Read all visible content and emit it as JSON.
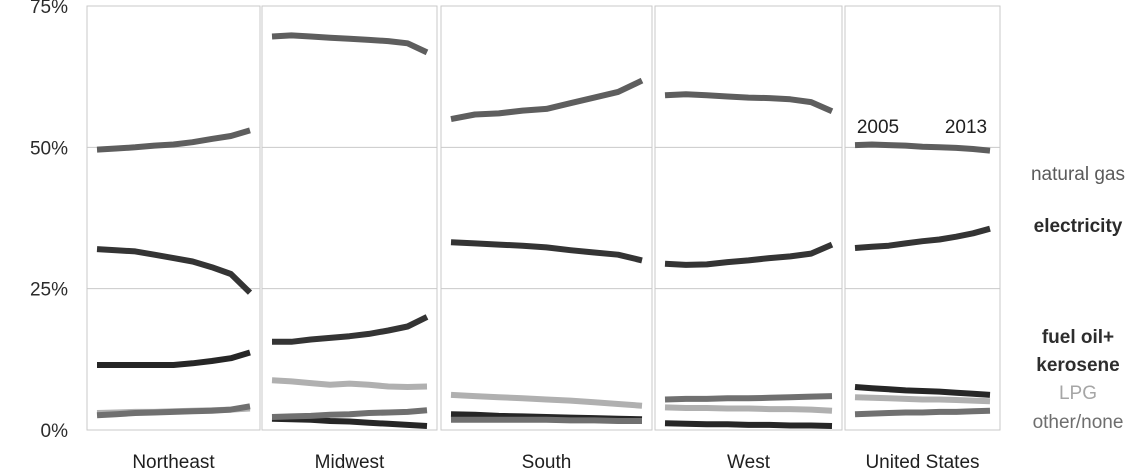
{
  "chart_data": {
    "type": "line",
    "title": "",
    "xlabel": "",
    "ylabel": "",
    "ylim": [
      0,
      75
    ],
    "y_ticks": [
      "0%",
      "25%",
      "50%",
      "75%"
    ],
    "y_tick_values": [
      0,
      25,
      50,
      75
    ],
    "grid": true,
    "legend_position": "right",
    "years": [
      2005,
      2006,
      2007,
      2008,
      2009,
      2010,
      2011,
      2012,
      2013
    ],
    "annotations": {
      "start_year": "2005",
      "end_year": "2013"
    },
    "panels": [
      {
        "name": "Northeast",
        "series": [
          {
            "name": "natural gas",
            "values": [
              49.6,
              49.8,
              50.0,
              50.3,
              50.5,
              50.9,
              51.5,
              52.0,
              53.0
            ]
          },
          {
            "name": "electricity",
            "values": [
              32.0,
              31.8,
              31.6,
              31.0,
              30.4,
              29.8,
              28.8,
              27.6,
              24.3
            ]
          },
          {
            "name": "fuel oil+ kerosene",
            "values": [
              11.5,
              11.5,
              11.5,
              11.5,
              11.5,
              11.8,
              12.2,
              12.7,
              13.7
            ]
          },
          {
            "name": "LPG",
            "values": [
              3.0,
              3.1,
              3.2,
              3.2,
              3.3,
              3.4,
              3.5,
              3.6,
              3.8
            ]
          },
          {
            "name": "other/none",
            "values": [
              2.6,
              2.8,
              3.0,
              3.1,
              3.2,
              3.3,
              3.4,
              3.6,
              4.2
            ]
          }
        ]
      },
      {
        "name": "Midwest",
        "series": [
          {
            "name": "natural gas",
            "values": [
              69.6,
              69.8,
              69.6,
              69.4,
              69.2,
              69.0,
              68.8,
              68.4,
              66.8
            ]
          },
          {
            "name": "electricity",
            "values": [
              15.6,
              15.6,
              16.0,
              16.3,
              16.6,
              17.0,
              17.6,
              18.3,
              20.0
            ]
          },
          {
            "name": "fuel oil+ kerosene",
            "values": [
              2.0,
              1.9,
              1.8,
              1.6,
              1.5,
              1.3,
              1.1,
              0.9,
              0.7
            ]
          },
          {
            "name": "LPG",
            "values": [
              8.8,
              8.6,
              8.3,
              8.0,
              8.2,
              8.0,
              7.7,
              7.6,
              7.7
            ]
          },
          {
            "name": "other/none",
            "values": [
              2.3,
              2.4,
              2.5,
              2.7,
              2.8,
              3.0,
              3.1,
              3.2,
              3.5
            ]
          }
        ]
      },
      {
        "name": "South",
        "series": [
          {
            "name": "natural gas",
            "values": [
              55.0,
              55.8,
              56.0,
              56.5,
              56.8,
              57.8,
              58.8,
              59.8,
              61.8
            ]
          },
          {
            "name": "electricity",
            "values": [
              33.2,
              33.0,
              32.8,
              32.6,
              32.3,
              31.8,
              31.4,
              31.0,
              30.0
            ]
          },
          {
            "name": "fuel oil+ kerosene",
            "values": [
              2.8,
              2.7,
              2.5,
              2.4,
              2.3,
              2.2,
              2.1,
              2.0,
              1.9
            ]
          },
          {
            "name": "LPG",
            "values": [
              6.2,
              6.0,
              5.8,
              5.6,
              5.4,
              5.2,
              4.9,
              4.6,
              4.3
            ]
          },
          {
            "name": "other/none",
            "values": [
              1.8,
              1.8,
              1.8,
              1.8,
              1.8,
              1.7,
              1.7,
              1.6,
              1.6
            ]
          }
        ]
      },
      {
        "name": "West",
        "series": [
          {
            "name": "natural gas",
            "values": [
              59.2,
              59.4,
              59.2,
              59.0,
              58.8,
              58.7,
              58.5,
              58.0,
              56.4
            ]
          },
          {
            "name": "electricity",
            "values": [
              29.4,
              29.2,
              29.3,
              29.7,
              30.0,
              30.4,
              30.7,
              31.2,
              32.8
            ]
          },
          {
            "name": "fuel oil+ kerosene",
            "values": [
              1.2,
              1.1,
              1.0,
              1.0,
              0.9,
              0.9,
              0.8,
              0.8,
              0.7
            ]
          },
          {
            "name": "LPG",
            "values": [
              4.0,
              3.9,
              3.9,
              3.8,
              3.8,
              3.7,
              3.7,
              3.6,
              3.4
            ]
          },
          {
            "name": "other/none",
            "values": [
              5.4,
              5.5,
              5.5,
              5.6,
              5.6,
              5.7,
              5.8,
              5.9,
              6.0
            ]
          }
        ]
      },
      {
        "name": "United States",
        "series": [
          {
            "name": "natural gas",
            "values": [
              50.4,
              50.5,
              50.4,
              50.3,
              50.1,
              50.0,
              49.9,
              49.7,
              49.4
            ]
          },
          {
            "name": "electricity",
            "values": [
              32.2,
              32.4,
              32.6,
              33.0,
              33.4,
              33.7,
              34.2,
              34.8,
              35.6
            ]
          },
          {
            "name": "fuel oil+ kerosene",
            "values": [
              7.6,
              7.4,
              7.2,
              7.0,
              6.9,
              6.8,
              6.6,
              6.4,
              6.2
            ]
          },
          {
            "name": "LPG",
            "values": [
              5.8,
              5.7,
              5.6,
              5.5,
              5.4,
              5.4,
              5.3,
              5.2,
              5.1
            ]
          },
          {
            "name": "other/none",
            "values": [
              2.8,
              2.9,
              3.0,
              3.1,
              3.1,
              3.2,
              3.2,
              3.3,
              3.4
            ]
          }
        ]
      }
    ]
  },
  "legend": [
    {
      "series": "natural gas",
      "lines": [
        "natural gas"
      ],
      "color": "#5a5a5a",
      "bold": false
    },
    {
      "series": "electricity",
      "lines": [
        "electricity"
      ],
      "color": "#2b2b2b",
      "bold": true
    },
    {
      "series": "fuel oil+ kerosene",
      "lines": [
        "fuel oil+",
        "kerosene"
      ],
      "color": "#2e2e2e",
      "bold": true
    },
    {
      "series": "LPG",
      "lines": [
        "LPG"
      ],
      "color": "#a6a6a6",
      "bold": false
    },
    {
      "series": "other/none",
      "lines": [
        "other/none"
      ],
      "color": "#6e6e6e",
      "bold": false
    }
  ],
  "series_colors": {
    "natural gas": "#5e5e5e",
    "electricity": "#343434",
    "fuel oil+ kerosene": "#262626",
    "LPG": "#b0b0b0",
    "other/none": "#707070"
  },
  "grid_color": "#c9c9c9"
}
